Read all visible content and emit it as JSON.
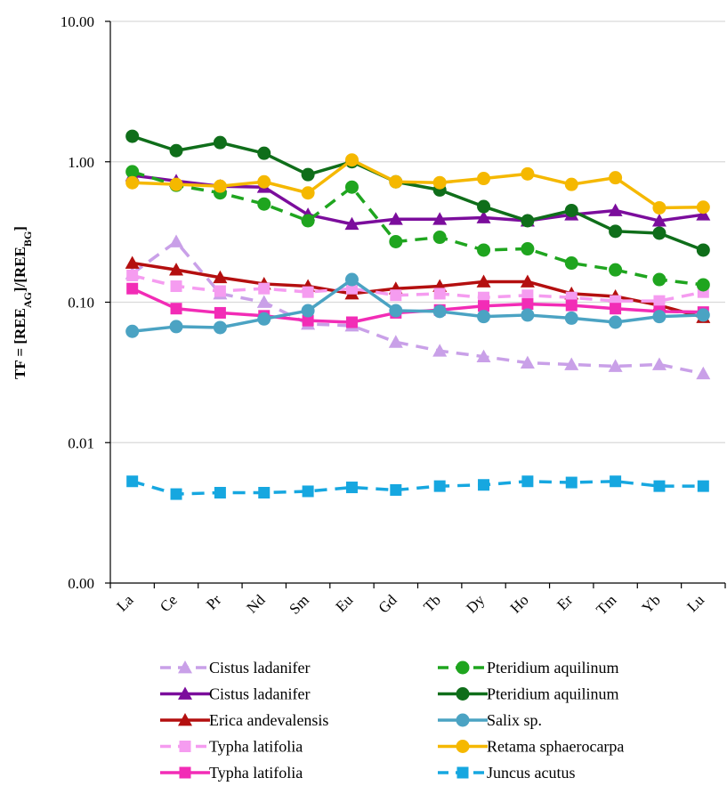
{
  "chart_data": {
    "type": "line",
    "title": "",
    "xlabel": "",
    "ylabel": {
      "main": "TF = [REE",
      "sub1": "AG",
      "mid": "]/[REE",
      "sub2": "BG",
      "end": "]"
    },
    "yscale": "log",
    "ylim": [
      0.001,
      10
    ],
    "ytick_values": [
      0.001,
      0.01,
      0.1,
      1,
      10
    ],
    "ytick_labels": [
      "0.00",
      "0.01",
      "0.10",
      "1.00",
      "10.00"
    ],
    "grid": "horizontal",
    "legend_position": "bottom",
    "categories": [
      "La",
      "Ce",
      "Pr",
      "Nd",
      "Sm",
      "Eu",
      "Gd",
      "Tb",
      "Dy",
      "Ho",
      "Er",
      "Tm",
      "Yb",
      "Lu"
    ],
    "series": [
      {
        "name": "Cistus ladanifer",
        "color": "#C9A0E8",
        "dashed": true,
        "marker": "triangle",
        "values": [
          0.16,
          0.27,
          0.115,
          0.1,
          0.07,
          0.068,
          0.052,
          0.045,
          0.041,
          0.037,
          0.036,
          0.035,
          0.036,
          0.031
        ]
      },
      {
        "name": "Cistus ladanifer",
        "color": "#7B0D9C",
        "dashed": false,
        "marker": "triangle",
        "values": [
          0.8,
          0.73,
          0.67,
          0.66,
          0.42,
          0.36,
          0.39,
          0.39,
          0.4,
          0.38,
          0.42,
          0.45,
          0.38,
          0.42
        ]
      },
      {
        "name": "Erica andevalensis",
        "color": "#B40F0F",
        "dashed": false,
        "marker": "triangle",
        "values": [
          0.19,
          0.17,
          0.15,
          0.135,
          0.13,
          0.115,
          0.125,
          0.13,
          0.14,
          0.14,
          0.115,
          0.11,
          0.095,
          0.078
        ]
      },
      {
        "name": "Typha latifolia",
        "color": "#F59CF0",
        "dashed": true,
        "marker": "square",
        "values": [
          0.155,
          0.13,
          0.12,
          0.125,
          0.118,
          0.125,
          0.112,
          0.115,
          0.108,
          0.112,
          0.108,
          0.102,
          0.102,
          0.118
        ]
      },
      {
        "name": "Typha latifolia",
        "color": "#F22CB6",
        "dashed": false,
        "marker": "square",
        "values": [
          0.125,
          0.09,
          0.084,
          0.08,
          0.074,
          0.072,
          0.084,
          0.088,
          0.094,
          0.097,
          0.095,
          0.09,
          0.086,
          0.085
        ]
      },
      {
        "name": "Pteridium aquilinum",
        "color": "#1FA51F",
        "dashed": true,
        "marker": "circle",
        "values": [
          0.85,
          0.68,
          0.6,
          0.5,
          0.38,
          0.66,
          0.27,
          0.29,
          0.235,
          0.24,
          0.19,
          0.17,
          0.145,
          0.133
        ]
      },
      {
        "name": "Pteridium aquilinum",
        "color": "#0F6E1A",
        "dashed": false,
        "marker": "circle",
        "values": [
          1.52,
          1.2,
          1.37,
          1.15,
          0.81,
          1.0,
          0.72,
          0.63,
          0.48,
          0.38,
          0.45,
          0.32,
          0.31,
          0.235
        ]
      },
      {
        "name": "Salix sp.",
        "color": "#4BA3C3",
        "dashed": false,
        "marker": "circle",
        "values": [
          0.062,
          0.067,
          0.066,
          0.076,
          0.087,
          0.145,
          0.087,
          0.086,
          0.079,
          0.081,
          0.077,
          0.072,
          0.079,
          0.081
        ]
      },
      {
        "name": "Retama sphaerocarpa",
        "color": "#F5B800",
        "dashed": false,
        "marker": "circle",
        "values": [
          0.71,
          0.69,
          0.67,
          0.72,
          0.6,
          1.03,
          0.72,
          0.71,
          0.76,
          0.82,
          0.69,
          0.77,
          0.47,
          0.475
        ]
      },
      {
        "name": "Juncus acutus",
        "color": "#16A7E0",
        "dashed": true,
        "marker": "square",
        "values": [
          0.0053,
          0.0043,
          0.0044,
          0.0044,
          0.0045,
          0.0048,
          0.0046,
          0.0049,
          0.005,
          0.0053,
          0.0052,
          0.0053,
          0.0049,
          0.0049
        ]
      }
    ]
  }
}
